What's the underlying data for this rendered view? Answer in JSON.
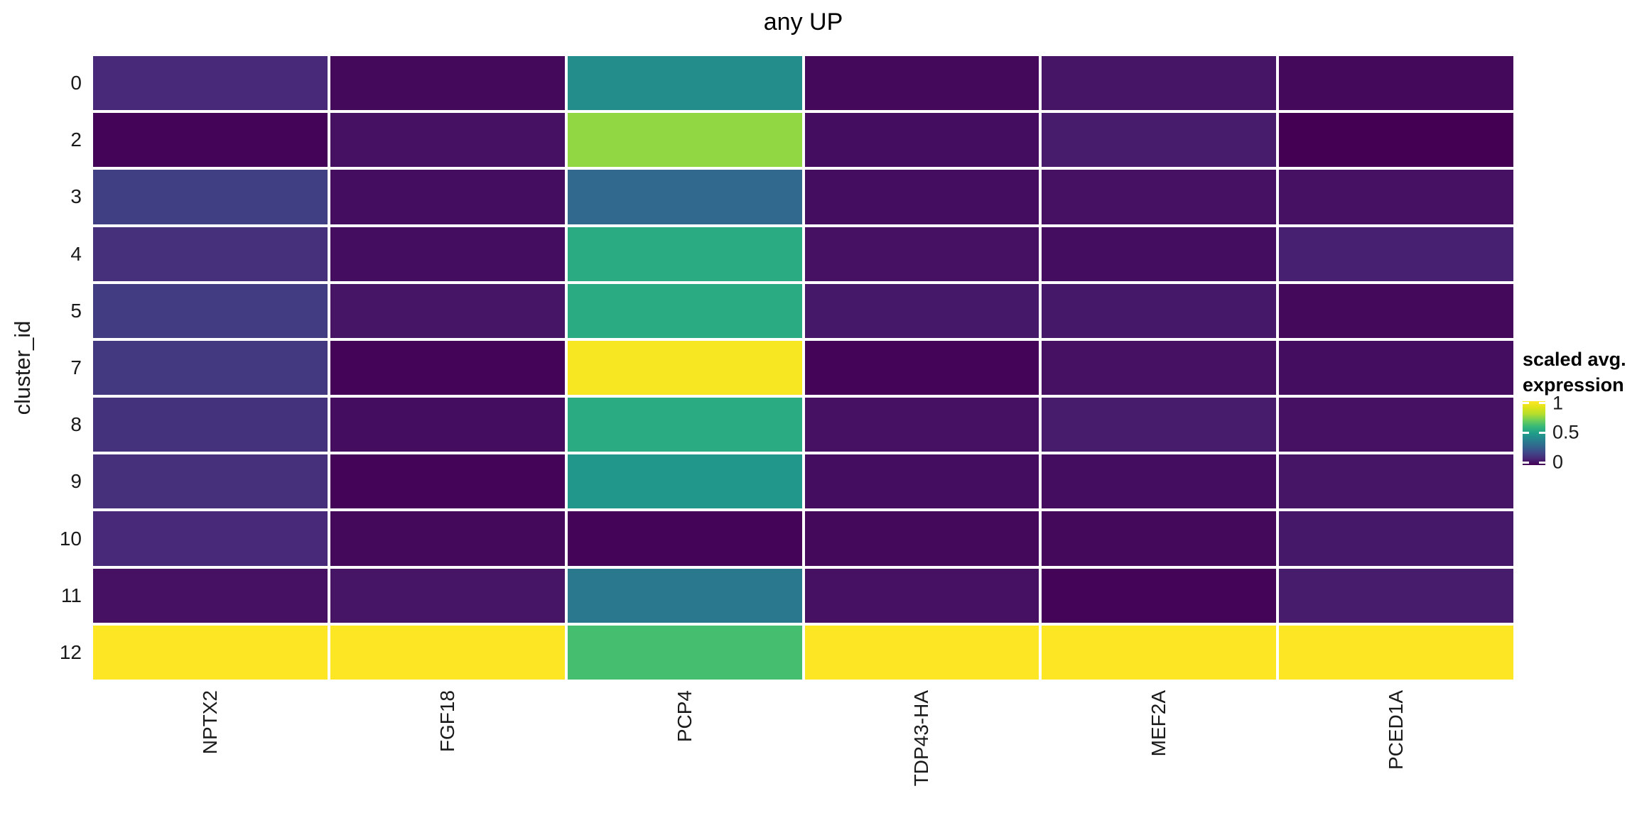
{
  "figure": {
    "title": "any UP",
    "background": "#ffffff"
  },
  "y_axis": {
    "title": "cluster_id",
    "tick_labels": [
      "0",
      "2",
      "3",
      "4",
      "5",
      "7",
      "8",
      "9",
      "10",
      "11",
      "12"
    ]
  },
  "x_axis": {
    "tick_labels": [
      "NPTX2",
      "FGF18",
      "PCP4",
      "TDP43-HA",
      "MEF2A",
      "PCED1A"
    ]
  },
  "legend": {
    "title_line1": "scaled avg.",
    "title_line2": "expression",
    "ticks": [
      {
        "label": "1",
        "pos": 0.033
      },
      {
        "label": "0.5",
        "pos": 0.489
      },
      {
        "label": "0",
        "pos": 0.956
      }
    ]
  },
  "chart_data": {
    "type": "heatmap",
    "title": "any UP",
    "xlabel": "",
    "ylabel": "cluster_id",
    "legend_title": "scaled avg. expression",
    "legend_position": "right",
    "value_range": [
      0,
      1
    ],
    "grid_gap_color": "#ffffff",
    "colormap": "viridis",
    "colormap_anchors": [
      [
        0.0,
        "#440154"
      ],
      [
        0.1,
        "#482878"
      ],
      [
        0.2,
        "#3e4989"
      ],
      [
        0.3,
        "#31688e"
      ],
      [
        0.4,
        "#26828e"
      ],
      [
        0.5,
        "#1f9e89"
      ],
      [
        0.6,
        "#35b779"
      ],
      [
        0.7,
        "#6dcd59"
      ],
      [
        0.8,
        "#b4de2c"
      ],
      [
        0.9,
        "#dfe318"
      ],
      [
        1.0,
        "#fde725"
      ]
    ],
    "columns": [
      "NPTX2",
      "FGF18",
      "PCP4",
      "TDP43-HA",
      "MEF2A",
      "PCED1A"
    ],
    "rows": [
      "0",
      "2",
      "3",
      "4",
      "5",
      "7",
      "8",
      "9",
      "10",
      "11",
      "12"
    ],
    "values": [
      [
        0.1,
        0.02,
        0.44,
        0.02,
        0.05,
        0.02
      ],
      [
        0.01,
        0.04,
        0.75,
        0.03,
        0.07,
        0.0
      ],
      [
        0.17,
        0.03,
        0.3,
        0.03,
        0.04,
        0.04
      ],
      [
        0.12,
        0.03,
        0.55,
        0.04,
        0.03,
        0.08
      ],
      [
        0.16,
        0.05,
        0.55,
        0.06,
        0.06,
        0.02
      ],
      [
        0.15,
        0.01,
        0.98,
        0.01,
        0.04,
        0.03
      ],
      [
        0.13,
        0.03,
        0.55,
        0.04,
        0.07,
        0.04
      ],
      [
        0.12,
        0.01,
        0.47,
        0.03,
        0.03,
        0.05
      ],
      [
        0.1,
        0.02,
        0.01,
        0.02,
        0.02,
        0.06
      ],
      [
        0.04,
        0.05,
        0.36,
        0.04,
        0.01,
        0.07
      ],
      [
        1.0,
        1.0,
        0.63,
        1.0,
        1.0,
        1.0
      ]
    ]
  }
}
